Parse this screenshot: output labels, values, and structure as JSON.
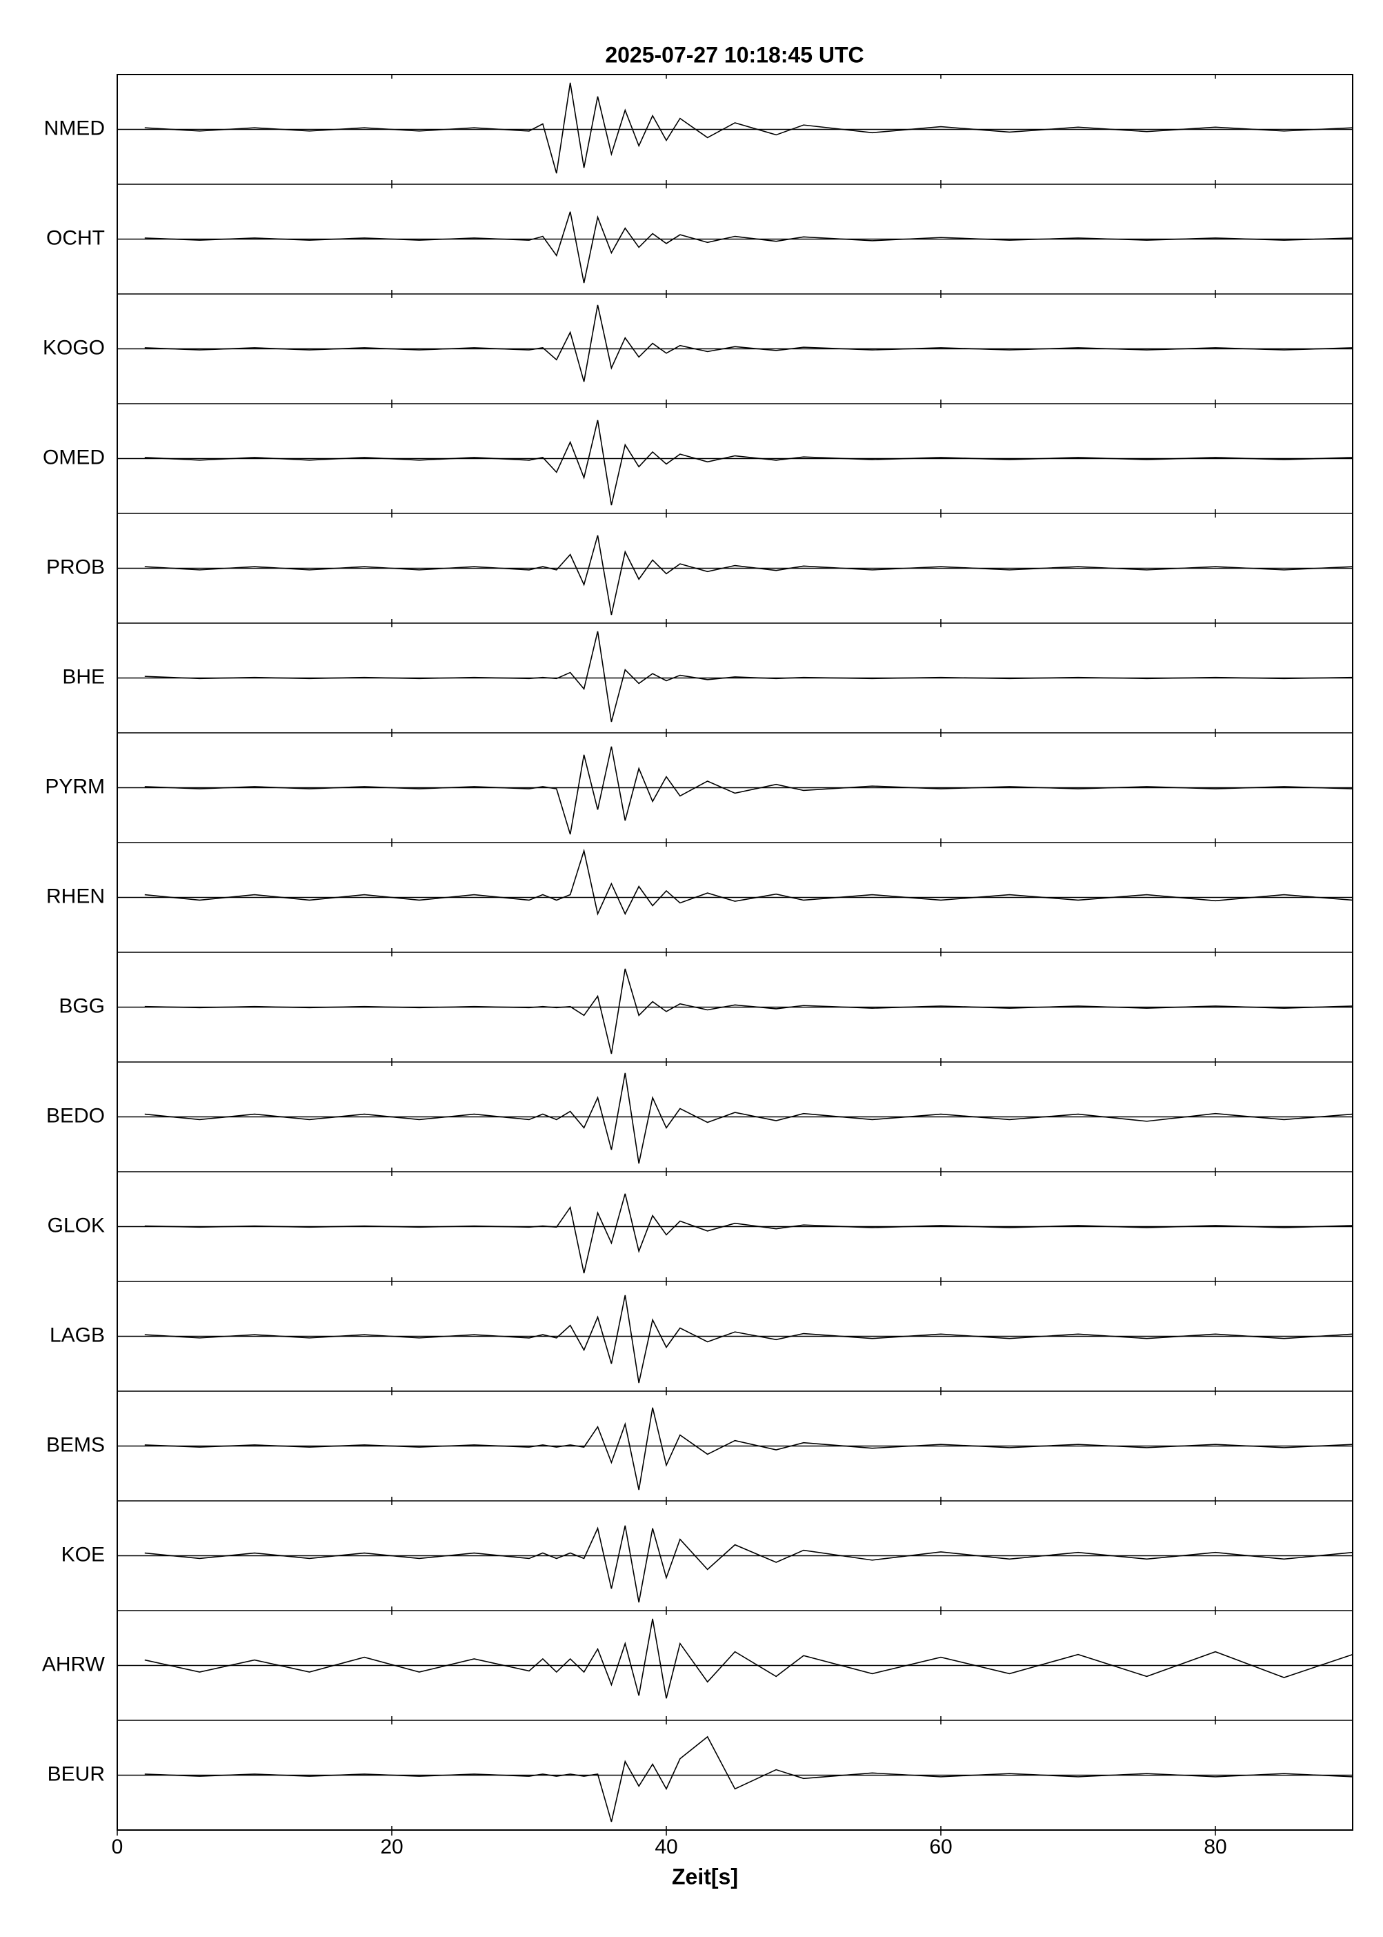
{
  "chart_data": {
    "type": "seismogram",
    "title": "2025-07-27  10:18:45 UTC",
    "x_label": "Zeit[s]",
    "xlim": [
      0,
      90
    ],
    "xticks": [
      0,
      20,
      40,
      60,
      80
    ],
    "ylim": [
      -1,
      1
    ],
    "color": "#000000",
    "x": [
      2,
      6,
      10,
      14,
      18,
      22,
      26,
      30,
      31,
      32,
      33,
      34,
      35,
      36,
      37,
      38,
      39,
      40,
      41,
      43,
      45,
      48,
      50,
      55,
      60,
      65,
      70,
      75,
      80,
      85,
      90
    ],
    "series": [
      {
        "name": "NMED",
        "values": [
          0.03,
          -0.03,
          0.03,
          -0.03,
          0.03,
          -0.03,
          0.03,
          -0.03,
          0.1,
          -0.8,
          0.85,
          -0.7,
          0.6,
          -0.45,
          0.35,
          -0.3,
          0.25,
          -0.2,
          0.2,
          -0.15,
          0.12,
          -0.1,
          0.08,
          -0.06,
          0.05,
          -0.05,
          0.04,
          -0.04,
          0.04,
          -0.03,
          0.03
        ]
      },
      {
        "name": "OCHT",
        "values": [
          0.02,
          -0.02,
          0.02,
          -0.02,
          0.02,
          -0.02,
          0.02,
          -0.02,
          0.05,
          -0.3,
          0.5,
          -0.8,
          0.4,
          -0.25,
          0.2,
          -0.15,
          0.1,
          -0.08,
          0.08,
          -0.06,
          0.05,
          -0.04,
          0.04,
          -0.03,
          0.03,
          -0.02,
          0.02,
          -0.02,
          0.02,
          -0.02,
          0.02
        ]
      },
      {
        "name": "KOGO",
        "values": [
          0.02,
          -0.02,
          0.02,
          -0.02,
          0.02,
          -0.02,
          0.02,
          -0.02,
          0.02,
          -0.2,
          0.3,
          -0.6,
          0.8,
          -0.35,
          0.2,
          -0.15,
          0.1,
          -0.08,
          0.06,
          -0.05,
          0.04,
          -0.03,
          0.03,
          -0.02,
          0.02,
          -0.02,
          0.02,
          -0.02,
          0.02,
          -0.02,
          0.02
        ]
      },
      {
        "name": "OMED",
        "values": [
          0.02,
          -0.03,
          0.02,
          -0.03,
          0.02,
          -0.03,
          0.02,
          -0.03,
          0.02,
          -0.25,
          0.3,
          -0.35,
          0.7,
          -0.85,
          0.25,
          -0.15,
          0.12,
          -0.1,
          0.08,
          -0.06,
          0.05,
          -0.03,
          0.03,
          -0.02,
          0.02,
          -0.02,
          0.02,
          -0.02,
          0.02,
          -0.02,
          0.02
        ]
      },
      {
        "name": "PROB",
        "values": [
          0.03,
          -0.03,
          0.03,
          -0.03,
          0.03,
          -0.03,
          0.03,
          -0.03,
          0.03,
          -0.03,
          0.25,
          -0.3,
          0.6,
          -0.85,
          0.3,
          -0.2,
          0.15,
          -0.1,
          0.08,
          -0.06,
          0.05,
          -0.04,
          0.04,
          -0.03,
          0.03,
          -0.03,
          0.03,
          -0.03,
          0.03,
          -0.03,
          0.03
        ]
      },
      {
        "name": "BHE",
        "values": [
          0.03,
          -0.01,
          0.01,
          -0.01,
          0.01,
          -0.01,
          0.01,
          -0.01,
          0.01,
          -0.01,
          0.1,
          -0.2,
          0.85,
          -0.8,
          0.15,
          -0.1,
          0.08,
          -0.05,
          0.05,
          -0.03,
          0.02,
          -0.01,
          0.01,
          -0.01,
          0.01,
          -0.01,
          0.01,
          -0.01,
          0.01,
          -0.01,
          0.01
        ]
      },
      {
        "name": "PYRM",
        "values": [
          0.02,
          -0.02,
          0.02,
          -0.02,
          0.02,
          -0.02,
          0.02,
          -0.02,
          0.02,
          -0.02,
          -0.85,
          0.6,
          -0.4,
          0.75,
          -0.6,
          0.35,
          -0.25,
          0.2,
          -0.15,
          0.12,
          -0.1,
          0.06,
          -0.05,
          0.03,
          -0.02,
          0.02,
          -0.02,
          0.02,
          -0.02,
          0.02,
          -0.02
        ]
      },
      {
        "name": "RHEN",
        "values": [
          0.05,
          -0.05,
          0.05,
          -0.05,
          0.05,
          -0.05,
          0.05,
          -0.05,
          0.05,
          -0.05,
          0.05,
          0.85,
          -0.3,
          0.25,
          -0.3,
          0.2,
          -0.15,
          0.12,
          -0.1,
          0.08,
          -0.07,
          0.06,
          -0.05,
          0.05,
          -0.05,
          0.05,
          -0.05,
          0.05,
          -0.06,
          0.05,
          -0.05
        ]
      },
      {
        "name": "BGG",
        "values": [
          0.01,
          -0.01,
          0.01,
          -0.01,
          0.01,
          -0.01,
          0.01,
          -0.01,
          0.01,
          -0.01,
          0.01,
          -0.15,
          0.2,
          -0.85,
          0.7,
          -0.15,
          0.1,
          -0.08,
          0.06,
          -0.05,
          0.04,
          -0.03,
          0.03,
          -0.02,
          0.02,
          -0.02,
          0.02,
          -0.02,
          0.02,
          -0.02,
          0.02
        ]
      },
      {
        "name": "BEDO",
        "values": [
          0.05,
          -0.05,
          0.05,
          -0.05,
          0.05,
          -0.05,
          0.05,
          -0.05,
          0.05,
          -0.05,
          0.1,
          -0.2,
          0.35,
          -0.6,
          0.8,
          -0.85,
          0.35,
          -0.2,
          0.15,
          -0.1,
          0.08,
          -0.07,
          0.06,
          -0.05,
          0.05,
          -0.05,
          0.05,
          -0.08,
          0.06,
          -0.05,
          0.05
        ]
      },
      {
        "name": "GLOK",
        "values": [
          0.01,
          -0.01,
          0.01,
          -0.01,
          0.01,
          -0.01,
          0.01,
          -0.01,
          0.01,
          -0.01,
          0.35,
          -0.85,
          0.25,
          -0.3,
          0.6,
          -0.45,
          0.2,
          -0.15,
          0.1,
          -0.08,
          0.06,
          -0.04,
          0.03,
          -0.02,
          0.02,
          -0.02,
          0.02,
          -0.02,
          0.02,
          -0.02,
          0.02
        ]
      },
      {
        "name": "LAGB",
        "values": [
          0.03,
          -0.03,
          0.03,
          -0.03,
          0.03,
          -0.03,
          0.03,
          -0.03,
          0.03,
          -0.03,
          0.2,
          -0.25,
          0.35,
          -0.5,
          0.75,
          -0.85,
          0.3,
          -0.2,
          0.15,
          -0.1,
          0.08,
          -0.06,
          0.05,
          -0.04,
          0.04,
          -0.04,
          0.04,
          -0.04,
          0.04,
          -0.04,
          0.04
        ]
      },
      {
        "name": "BEMS",
        "values": [
          0.02,
          -0.02,
          0.02,
          -0.02,
          0.02,
          -0.02,
          0.02,
          -0.02,
          0.02,
          -0.02,
          0.02,
          -0.02,
          0.35,
          -0.3,
          0.4,
          -0.8,
          0.7,
          -0.35,
          0.2,
          -0.15,
          0.1,
          -0.07,
          0.06,
          -0.04,
          0.03,
          -0.03,
          0.03,
          -0.03,
          0.03,
          -0.03,
          0.03
        ]
      },
      {
        "name": "KOE",
        "values": [
          0.05,
          -0.05,
          0.05,
          -0.05,
          0.05,
          -0.05,
          0.05,
          -0.05,
          0.05,
          -0.05,
          0.05,
          -0.05,
          0.5,
          -0.6,
          0.55,
          -0.85,
          0.5,
          -0.4,
          0.3,
          -0.25,
          0.2,
          -0.12,
          0.1,
          -0.08,
          0.07,
          -0.06,
          0.06,
          -0.06,
          0.06,
          -0.06,
          0.06
        ]
      },
      {
        "name": "AHRW",
        "values": [
          0.1,
          -0.12,
          0.1,
          -0.12,
          0.15,
          -0.12,
          0.12,
          -0.1,
          0.12,
          -0.12,
          0.12,
          -0.12,
          0.3,
          -0.35,
          0.4,
          -0.55,
          0.85,
          -0.6,
          0.4,
          -0.3,
          0.25,
          -0.2,
          0.18,
          -0.15,
          0.15,
          -0.15,
          0.2,
          -0.2,
          0.25,
          -0.22,
          0.2
        ]
      },
      {
        "name": "BEUR",
        "values": [
          0.02,
          -0.02,
          0.02,
          -0.02,
          0.02,
          -0.02,
          0.02,
          -0.02,
          0.02,
          -0.02,
          0.02,
          -0.02,
          0.02,
          -0.85,
          0.25,
          -0.2,
          0.2,
          -0.25,
          0.3,
          0.7,
          -0.25,
          0.1,
          -0.06,
          0.04,
          -0.03,
          0.03,
          -0.03,
          0.03,
          -0.03,
          0.03,
          -0.03
        ]
      }
    ]
  }
}
